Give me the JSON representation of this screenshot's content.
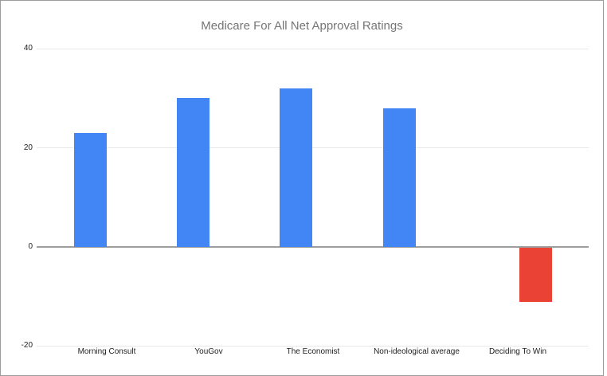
{
  "window": {
    "background": "#ffffff",
    "border_color": "#9c9c9c"
  },
  "chart_data": {
    "type": "bar",
    "title": "Medicare For All Net Approval Ratings",
    "categories": [
      "Morning Consult",
      "YouGov",
      "The Economist",
      "Non-ideological average",
      "Deciding To Win"
    ],
    "values": [
      23,
      30,
      32,
      28,
      -11
    ],
    "bar_colors": [
      "#4285f4",
      "#4285f4",
      "#4285f4",
      "#4285f4",
      "#ea4335"
    ],
    "positive_color": "#4285f4",
    "negative_color": "#ea4335",
    "xlabel": "",
    "ylabel": "",
    "yticks": [
      40,
      20,
      0,
      -20
    ],
    "ylim": [
      -20,
      40
    ],
    "grid": "horizontal-only",
    "legend": "none",
    "title_color": "#757575",
    "axis_text_color": "#222222",
    "gridline_color": "#e8e8e8",
    "zero_line_color": "#9e9e9e"
  }
}
